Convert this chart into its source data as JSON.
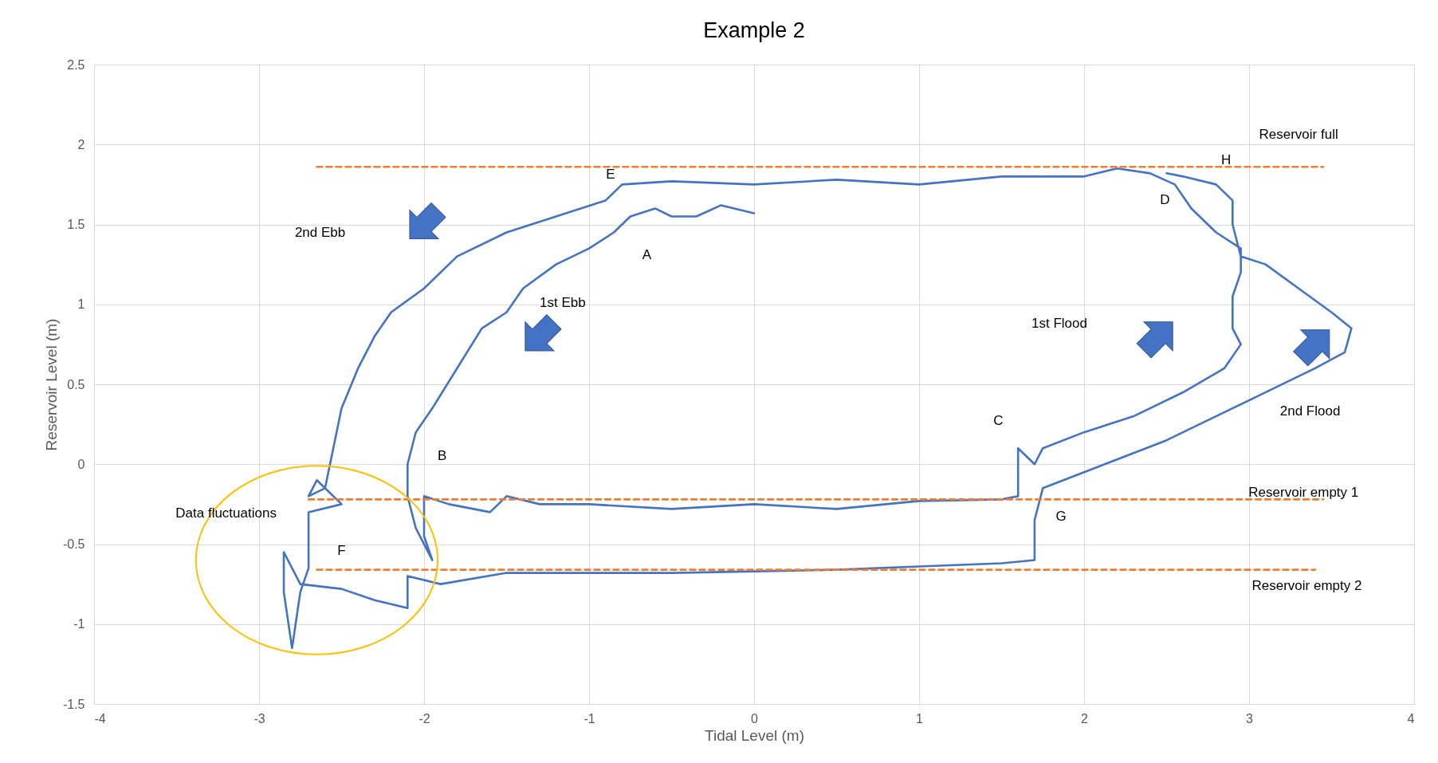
{
  "chart_data": {
    "type": "line",
    "title": "Example 2",
    "xlabel": "Tidal Level (m)",
    "ylabel": "Reservoir Level (m)",
    "xlim": [
      -4,
      4
    ],
    "ylim": [
      -1.5,
      2.5
    ],
    "xticks": [
      -4,
      -3,
      -2,
      -1,
      0,
      1,
      2,
      3,
      4
    ],
    "yticks": [
      -1.5,
      -1,
      -0.5,
      0,
      0.5,
      1,
      1.5,
      2,
      2.5
    ],
    "grid": true,
    "marker": "none",
    "series": [
      {
        "color": "#4472c4",
        "line_style": "solid",
        "x": [
          0.0,
          -0.2,
          -0.35,
          -0.5,
          -0.6,
          -0.75,
          -0.85,
          -1.0,
          -1.2,
          -1.4,
          -1.5,
          -1.65,
          -1.8,
          -1.95,
          -2.05,
          -2.1,
          -2.1,
          -2.05,
          -1.95,
          -2.0,
          -2.0,
          -1.85,
          -1.6,
          -1.5,
          -1.3,
          -1.0,
          -0.5,
          0.0,
          0.5,
          1.0,
          1.5,
          1.6,
          1.6,
          1.7,
          1.75,
          2.0,
          2.3,
          2.6,
          2.85,
          2.95,
          2.9,
          2.9,
          2.95,
          2.95,
          2.8,
          2.65,
          2.55,
          2.4,
          2.2,
          2.0,
          1.5,
          1.0,
          0.5,
          0.0,
          -0.5,
          -0.8,
          -0.9,
          -1.2,
          -1.5,
          -1.8,
          -2.0,
          -2.2,
          -2.3,
          -2.4,
          -2.5,
          -2.55,
          -2.6,
          -2.7,
          -2.65,
          -2.5,
          -2.7,
          -2.7,
          -2.7,
          -2.75,
          -2.8,
          -2.85,
          -2.85,
          -2.75,
          -2.5,
          -2.3,
          -2.1,
          -2.1,
          -1.9,
          -1.5,
          -1.0,
          -0.5,
          0.0,
          0.5,
          1.0,
          1.5,
          1.7,
          1.7,
          1.75,
          2.0,
          2.5,
          3.0,
          3.4,
          3.58,
          3.62,
          3.5,
          3.3,
          3.1,
          2.95,
          2.9,
          2.9,
          2.8,
          2.6,
          2.5
        ],
        "values": [
          1.57,
          1.62,
          1.55,
          1.55,
          1.6,
          1.55,
          1.45,
          1.35,
          1.25,
          1.1,
          0.95,
          0.85,
          0.6,
          0.35,
          0.2,
          0.0,
          -0.2,
          -0.4,
          -0.6,
          -0.45,
          -0.2,
          -0.25,
          -0.3,
          -0.2,
          -0.25,
          -0.25,
          -0.28,
          -0.25,
          -0.28,
          -0.23,
          -0.22,
          -0.2,
          0.1,
          0.0,
          0.1,
          0.2,
          0.3,
          0.45,
          0.6,
          0.75,
          0.85,
          1.05,
          1.2,
          1.35,
          1.45,
          1.6,
          1.75,
          1.82,
          1.85,
          1.8,
          1.8,
          1.75,
          1.78,
          1.75,
          1.77,
          1.75,
          1.65,
          1.55,
          1.45,
          1.3,
          1.1,
          0.95,
          0.8,
          0.6,
          0.35,
          0.1,
          -0.15,
          -0.2,
          -0.1,
          -0.25,
          -0.3,
          -0.5,
          -0.65,
          -0.8,
          -1.15,
          -0.8,
          -0.55,
          -0.75,
          -0.78,
          -0.85,
          -0.9,
          -0.7,
          -0.75,
          -0.68,
          -0.68,
          -0.68,
          -0.67,
          -0.66,
          -0.64,
          -0.62,
          -0.6,
          -0.35,
          -0.15,
          -0.05,
          0.15,
          0.4,
          0.6,
          0.7,
          0.85,
          0.95,
          1.1,
          1.25,
          1.3,
          1.5,
          1.65,
          1.75,
          1.8,
          1.82
        ]
      },
      {
        "color": "#ed7d31",
        "line_style": "dashed",
        "x": [
          -2.65,
          3.45
        ],
        "values": [
          1.86,
          1.86
        ]
      },
      {
        "color": "#ed7d31",
        "line_style": "dashed",
        "x": [
          -2.7,
          3.45
        ],
        "values": [
          -0.22,
          -0.22
        ]
      },
      {
        "color": "#ed7d31",
        "line_style": "dashed",
        "x": [
          -2.65,
          3.4
        ],
        "values": [
          -0.66,
          -0.66
        ]
      }
    ],
    "annotations": [
      "Reservoir full",
      "Reservoir empty 1",
      "Reservoir empty 2",
      "2nd Flood",
      "1st Flood",
      "1st Ebb",
      "2nd Ebb",
      "Data fluctuations",
      "A",
      "B",
      "C",
      "D",
      "E",
      "F",
      "G",
      "H"
    ]
  }
}
